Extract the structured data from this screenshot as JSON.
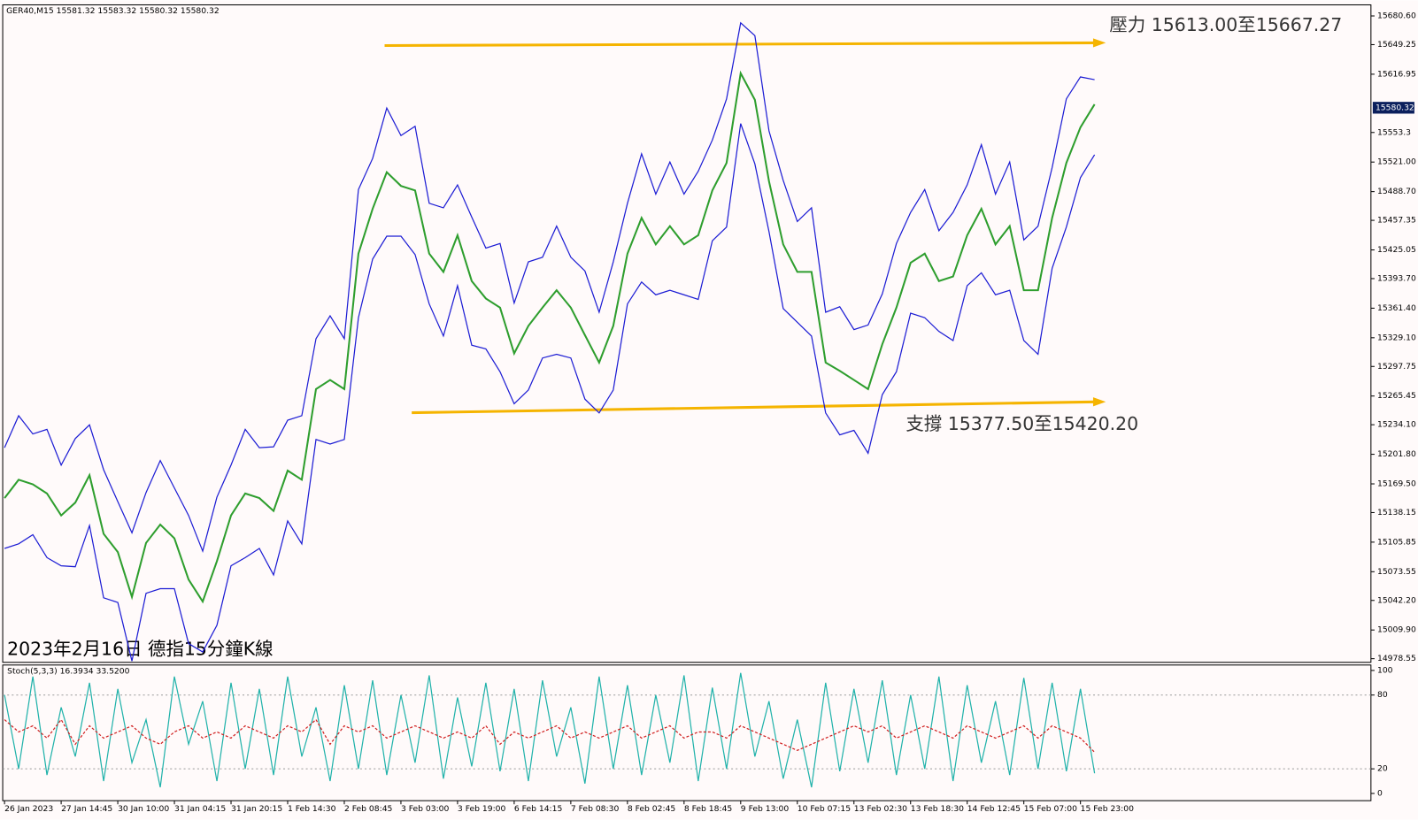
{
  "chart_data": {
    "type": "line",
    "header": "GER40,M15  15581.32 15583.32 15580.32 15580.32",
    "title": "2023年2月16日 德指15分鐘K線",
    "annotations": {
      "resistance": "壓力 15613.00至15667.27",
      "support": "支撐 15377.50至15420.20"
    },
    "last_price": 15580.32,
    "categories": [
      "26 Jan 2023",
      null,
      null,
      null,
      "27 Jan 14:45",
      null,
      null,
      null,
      "30 Jan 10:00",
      null,
      null,
      null,
      "31 Jan 04:15",
      null,
      null,
      null,
      "31 Jan 20:15",
      null,
      null,
      null,
      "1 Feb 14:30",
      null,
      null,
      null,
      "2 Feb 08:45",
      null,
      null,
      null,
      "3 Feb 03:00",
      null,
      null,
      null,
      "3 Feb 19:00",
      null,
      null,
      null,
      "6 Feb 14:15",
      null,
      null,
      null,
      "7 Feb 08:30",
      null,
      null,
      null,
      "8 Feb 02:45",
      null,
      null,
      null,
      "8 Feb 18:45",
      null,
      null,
      null,
      "9 Feb 13:00",
      null,
      null,
      null,
      "10 Feb 07:15",
      null,
      null,
      null,
      "13 Feb 02:30",
      null,
      null,
      null,
      "13 Feb 18:30",
      null,
      null,
      null,
      "14 Feb 12:45",
      null,
      null,
      null,
      "15 Feb 07:00",
      null,
      null,
      null,
      "15 Feb 23:00",
      null
    ],
    "series": [
      {
        "color": "#2e9e2e",
        "values": [
          15154,
          15174,
          15169,
          15159,
          15135,
          15149,
          15179,
          15115,
          15095,
          15046,
          15105,
          15125,
          15110,
          15065,
          15041,
          15085,
          15135,
          15159,
          15154,
          15140,
          15184,
          15174,
          15273,
          15283,
          15273,
          15421,
          15470,
          15510,
          15495,
          15490,
          15421,
          15401,
          15441,
          15391,
          15372,
          15362,
          15312,
          15342,
          15362,
          15381,
          15362,
          15332,
          15302,
          15342,
          15421,
          15460,
          15431,
          15451,
          15431,
          15441,
          15490,
          15520,
          15618,
          15589,
          15500,
          15431,
          15401,
          15401,
          15302,
          15293,
          15283,
          15273,
          15322,
          15362,
          15411,
          15421,
          15391,
          15396,
          15441,
          15470,
          15431,
          15451,
          15381,
          15381,
          15460,
          15520,
          15559,
          15584
        ]
      },
      {
        "color": "#1c1cd4",
        "values": [
          15209,
          15244,
          15224,
          15229,
          15190,
          15219,
          15234,
          15185,
          15150,
          15116,
          15160,
          15195,
          15165,
          15135,
          15096,
          15155,
          15190,
          15229,
          15209,
          15210,
          15239,
          15244,
          15328,
          15353,
          15328,
          15491,
          15525,
          15580,
          15550,
          15560,
          15476,
          15471,
          15496,
          15461,
          15427,
          15432,
          15367,
          15412,
          15417,
          15451,
          15417,
          15402,
          15357,
          15412,
          15476,
          15530,
          15486,
          15521,
          15486,
          15511,
          15545,
          15590,
          15673,
          15659,
          15555,
          15501,
          15456,
          15471,
          15357,
          15363,
          15338,
          15343,
          15377,
          15432,
          15466,
          15491,
          15446,
          15466,
          15496,
          15540,
          15486,
          15521,
          15436,
          15451,
          15515,
          15590,
          15614,
          15611
        ]
      },
      {
        "color": "#1c1cd4",
        "values": [
          15099,
          15104,
          15114,
          15089,
          15080,
          15079,
          15124,
          15045,
          15040,
          14976,
          15050,
          15055,
          15055,
          14995,
          14986,
          15015,
          15080,
          15089,
          15099,
          15070,
          15129,
          15104,
          15218,
          15213,
          15218,
          15351,
          15415,
          15440,
          15440,
          15420,
          15366,
          15331,
          15386,
          15321,
          15317,
          15292,
          15257,
          15272,
          15307,
          15311,
          15307,
          15262,
          15247,
          15272,
          15366,
          15390,
          15376,
          15381,
          15376,
          15371,
          15435,
          15450,
          15563,
          15519,
          15445,
          15361,
          15346,
          15331,
          15247,
          15223,
          15228,
          15203,
          15267,
          15292,
          15356,
          15351,
          15336,
          15326,
          15386,
          15400,
          15376,
          15381,
          15326,
          15311,
          15405,
          15450,
          15504,
          15529
        ]
      }
    ],
    "ylim": [
      14974.6,
      15692.7
    ],
    "yticks": [
      {
        "value": 15680.6,
        "label": "15680.60"
      },
      15649.25,
      15616.95,
      15553.3,
      {
        "value": 15521,
        "label": "15521.00"
      },
      {
        "value": 15488.7,
        "label": "15488.70"
      },
      15457.35,
      15425.05,
      {
        "value": 15393.7,
        "label": "15393.70"
      },
      {
        "value": 15361.4,
        "label": "15361.40"
      },
      {
        "value": 15329.1,
        "label": "15329.10"
      },
      15297.75,
      15265.45,
      {
        "value": 15234.1,
        "label": "15234.10"
      },
      {
        "value": 15201.8,
        "label": "15201.80"
      },
      {
        "value": 15169.5,
        "label": "15169.50"
      },
      15138.15,
      15105.85,
      15073.55,
      {
        "value": 15042.2,
        "label": "15042.20"
      },
      {
        "value": 15009.9,
        "label": "15009.90"
      },
      14978.55
    ],
    "oscillator": {
      "type": "line",
      "title": "Stoch(5,3,3) 16.3934 33.5200",
      "ylim": [
        0,
        100
      ],
      "yticks": [
        100,
        80,
        20,
        0
      ],
      "levels": [
        80,
        20
      ],
      "series": [
        {
          "color": "#20b2aa",
          "values": [
            80,
            20,
            95,
            15,
            70,
            30,
            90,
            10,
            85,
            25,
            60,
            5,
            95,
            40,
            75,
            10,
            90,
            20,
            85,
            15,
            95,
            30,
            70,
            10,
            88,
            20,
            92,
            15,
            80,
            25,
            96,
            12,
            78,
            22,
            90,
            18,
            85,
            10,
            92,
            30,
            70,
            8,
            95,
            20,
            88,
            15,
            80,
            25,
            96,
            10,
            86,
            20,
            98,
            30,
            75,
            12,
            60,
            5,
            90,
            18,
            85,
            25,
            92,
            15,
            80,
            20,
            95,
            10,
            88,
            25,
            75,
            15,
            94,
            20,
            90,
            18,
            85,
            16.3934
          ]
        },
        {
          "color": "#d02020",
          "dashed": true,
          "values": [
            60,
            50,
            55,
            45,
            60,
            40,
            55,
            45,
            50,
            55,
            45,
            40,
            50,
            55,
            45,
            50,
            45,
            55,
            50,
            45,
            55,
            50,
            60,
            40,
            55,
            50,
            55,
            45,
            50,
            55,
            50,
            45,
            50,
            45,
            55,
            40,
            50,
            45,
            50,
            55,
            45,
            50,
            45,
            50,
            55,
            45,
            50,
            55,
            45,
            50,
            50,
            45,
            55,
            50,
            45,
            40,
            35,
            40,
            45,
            50,
            55,
            50,
            55,
            45,
            50,
            55,
            50,
            45,
            55,
            50,
            45,
            50,
            55,
            45,
            55,
            50,
            45,
            33.52
          ]
        }
      ]
    }
  }
}
